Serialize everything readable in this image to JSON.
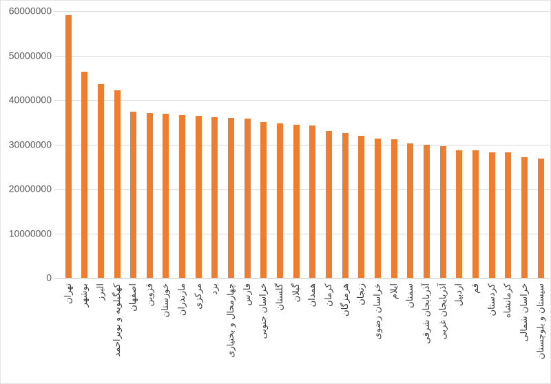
{
  "chart_data": {
    "type": "bar",
    "title": "",
    "xlabel": "",
    "ylabel": "",
    "categories": [
      "تهران",
      "بوشهر",
      "البرز",
      "کهگیلویه و بویراحمد",
      "اصفهان",
      "قزوین",
      "خوزستان",
      "مازندران",
      "مرکزی",
      "یزد",
      "چهارمحال و بختیاری",
      "فارس",
      "خراسان جنوبی",
      "گلستان",
      "گیلان",
      "همدان",
      "کرمان",
      "هرمزگان",
      "زنجان",
      "خراسان رضوی",
      "ایلام",
      "سمنان",
      "آذربایجان شرقی",
      "آذربایجان غربی",
      "اردبیل",
      "قم",
      "کردستان",
      "کرمانشاه",
      "خراسان شمالی",
      "سیستان و بلوچستان"
    ],
    "values": [
      59000000,
      46400000,
      43500000,
      42200000,
      37400000,
      37000000,
      36900000,
      36600000,
      36400000,
      36100000,
      35900000,
      35800000,
      35000000,
      34800000,
      34400000,
      34200000,
      33000000,
      32600000,
      32000000,
      31300000,
      31100000,
      30200000,
      30000000,
      29600000,
      28700000,
      28700000,
      28300000,
      28300000,
      27100000,
      26900000
    ],
    "ylim": [
      0,
      60000000
    ],
    "y_ticks": [
      0,
      10000000,
      20000000,
      30000000,
      40000000,
      50000000,
      60000000
    ],
    "y_tick_labels": [
      "0",
      "10000000",
      "20000000",
      "30000000",
      "40000000",
      "50000000",
      "60000000"
    ],
    "grid": "horizontal",
    "legend": "none",
    "x_label_rotation": -90,
    "bar_color": "#ED7D31"
  },
  "colors": {
    "bar": "#ED7D31",
    "gridline": "#D9D9D9",
    "axis_line": "#C6C6C6",
    "y_tick_text": "#595959",
    "x_tick_text": "#3F3F3F",
    "background": "#FFFFFF",
    "frame_border": "#E4E4E4"
  }
}
